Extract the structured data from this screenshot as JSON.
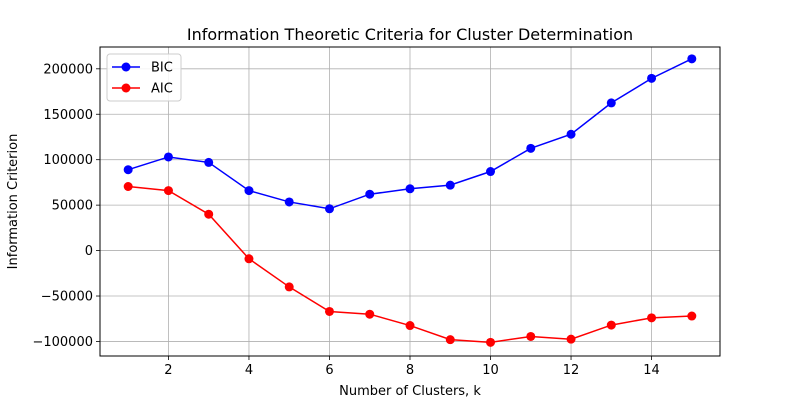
{
  "chart_data": {
    "type": "line",
    "title": "Information Theoretic Criteria for Cluster Determination",
    "xlabel": "Number of Clusters, k",
    "ylabel": "Information Criterion",
    "x": [
      1,
      2,
      3,
      4,
      5,
      6,
      7,
      8,
      9,
      10,
      11,
      12,
      13,
      14,
      15
    ],
    "xlim": [
      0.3,
      15.7
    ],
    "ylim": [
      -116000,
      224000
    ],
    "xticks": [
      2,
      4,
      6,
      8,
      10,
      12,
      14
    ],
    "yticks": [
      -100000,
      -50000,
      0,
      50000,
      100000,
      150000,
      200000
    ],
    "ytick_labels": [
      "−100000",
      "−50000",
      "0",
      "50000",
      "100000",
      "150000",
      "200000"
    ],
    "grid": true,
    "legend_position": "top-left",
    "series": [
      {
        "name": "BIC",
        "color": "#0000ff",
        "marker": "circle",
        "values": [
          89000,
          103000,
          97000,
          66000,
          53500,
          46000,
          62000,
          68000,
          72000,
          87000,
          112500,
          128000,
          162500,
          189500,
          211000
        ]
      },
      {
        "name": "AIC",
        "color": "#ff0000",
        "marker": "circle",
        "values": [
          70500,
          66000,
          40000,
          -9000,
          -40000,
          -67000,
          -70000,
          -82500,
          -98000,
          -101000,
          -94500,
          -97500,
          -82000,
          -74000,
          -72000
        ]
      }
    ]
  }
}
